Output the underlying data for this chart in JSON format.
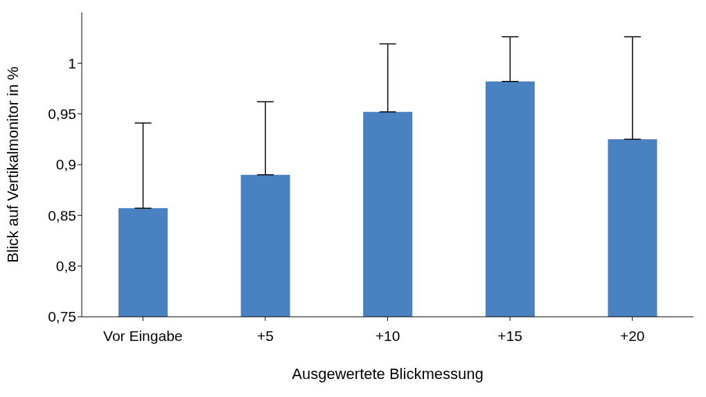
{
  "chart_data": {
    "type": "bar",
    "xlabel": "Ausgewertete Blickmessung",
    "ylabel": "Blick auf Vertikalmonitor in %",
    "categories": [
      "Vor Eingabe",
      "+5",
      "+10",
      "+15",
      "+20"
    ],
    "values": [
      0.857,
      0.89,
      0.952,
      0.982,
      0.925
    ],
    "errors": [
      [
        0.857,
        0.941
      ],
      [
        0.89,
        0.962
      ],
      [
        0.952,
        1.019
      ],
      [
        0.982,
        1.026
      ],
      [
        0.925,
        1.026
      ]
    ],
    "color": "#4a81c0",
    "ylim": [
      0.75,
      1.05
    ],
    "yticks": [
      {
        "value": 0.75,
        "label": "0,75"
      },
      {
        "value": 0.8,
        "label": "0,8"
      },
      {
        "value": 0.85,
        "label": "0,85"
      },
      {
        "value": 0.9,
        "label": "0,9"
      },
      {
        "value": 0.95,
        "label": "0,95"
      },
      {
        "value": 1,
        "label": "1"
      }
    ],
    "grid": false,
    "legend": false
  }
}
